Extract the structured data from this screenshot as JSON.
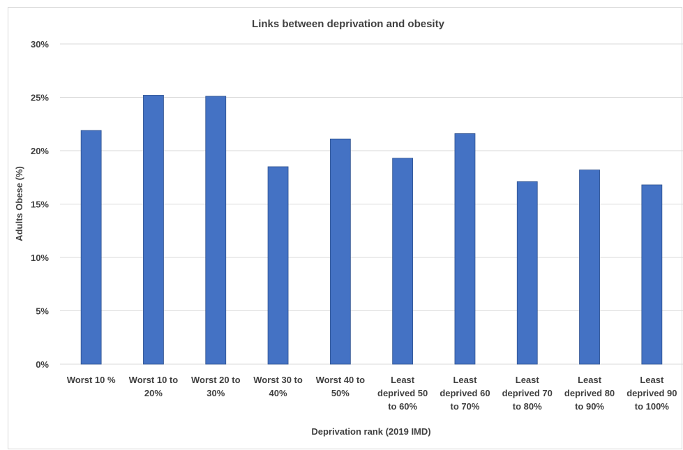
{
  "chart_data": {
    "type": "bar",
    "title": "Links between deprivation and obesity",
    "xlabel": "Deprivation rank (2019 IMD)",
    "ylabel": "Adults Obese (%)",
    "ylim": [
      0,
      30
    ],
    "y_ticks": [
      "0%",
      "5%",
      "10%",
      "15%",
      "20%",
      "25%",
      "30%"
    ],
    "y_tick_values": [
      0,
      5,
      10,
      15,
      20,
      25,
      30
    ],
    "categories": [
      [
        "Worst 10 %"
      ],
      [
        "Worst 10 to",
        "20%"
      ],
      [
        "Worst 20 to",
        "30%"
      ],
      [
        "Worst 30 to",
        "40%"
      ],
      [
        "Worst 40 to",
        "50%"
      ],
      [
        "Least",
        "deprived 50",
        "to 60%"
      ],
      [
        "Least",
        "deprived 60",
        "to 70%"
      ],
      [
        "Least",
        "deprived 70",
        "to 80%"
      ],
      [
        "Least",
        "deprived 80",
        "to 90%"
      ],
      [
        "Least",
        "deprived 90",
        "to 100%"
      ]
    ],
    "values": [
      21.9,
      25.2,
      25.1,
      18.5,
      21.1,
      19.3,
      21.6,
      17.1,
      18.2,
      16.8
    ],
    "bar_color": "#4472C4",
    "bar_border_color": "#2F528F",
    "grid": true,
    "grid_color": "#D9D9D9",
    "legend": "none"
  }
}
